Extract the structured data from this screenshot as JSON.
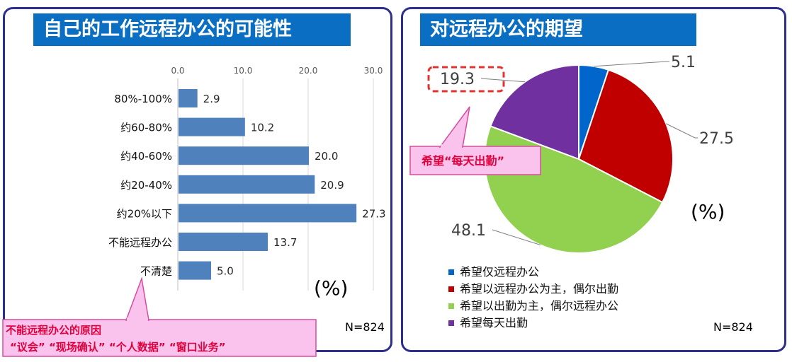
{
  "left": {
    "title": "自己的工作远程办公的可能性",
    "unit": "(%)",
    "n_label": "N=824",
    "callout": {
      "line1": "不能远程办公的原因",
      "line2": "“议会”  “现场确认”  “个人数据”  “窗口业务”"
    }
  },
  "right": {
    "title": "对远程办公的期望",
    "unit": "(%)",
    "n_label": "N=824",
    "callout": "希望“每天出勤”"
  },
  "chart_data": [
    {
      "type": "bar",
      "orientation": "horizontal",
      "categories": [
        "80%-100%",
        "约60-80%",
        "约40-60%",
        "约20-40%",
        "约20%以下",
        "不能远程办公",
        "不清楚"
      ],
      "values": [
        2.9,
        10.2,
        20.0,
        20.9,
        27.3,
        13.7,
        5.0
      ],
      "value_labels": [
        "2.9",
        "10.2",
        "20.0",
        "20.9",
        "27.3",
        "13.7",
        "5.0"
      ],
      "xlim": [
        0,
        30
      ],
      "ticks": [
        "0.0",
        "10.0",
        "20.0",
        "30.0"
      ],
      "tick_values": [
        0,
        10,
        20,
        30
      ],
      "grid": true,
      "color": "#4f81bd"
    },
    {
      "type": "pie",
      "labels": [
        "希望仅远程办公",
        "希望以远程办公为主，偶尔出勤",
        "希望以出勤为主，偶尔远程办公",
        "希望每天出勤"
      ],
      "values": [
        5.1,
        27.5,
        48.1,
        19.3
      ],
      "value_labels": [
        "5.1",
        "27.5",
        "48.1",
        "19.3"
      ],
      "colors": [
        "#0066cc",
        "#c00000",
        "#92d050",
        "#7030a0"
      ],
      "legend": "bottom"
    }
  ]
}
